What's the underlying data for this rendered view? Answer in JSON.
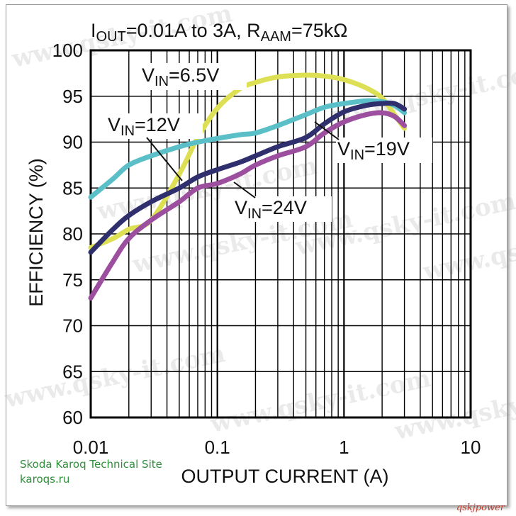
{
  "chart_data": {
    "type": "line",
    "title": "I_OUT=0.01A to 3A, R_AAM=75kΩ",
    "title_parts": {
      "main1": "I",
      "sub1": "OUT",
      "main2": "=0.01A to 3A, R",
      "sub2": "AAM",
      "main3": "=75kΩ"
    },
    "xlabel": "OUTPUT CURRENT (A)",
    "ylabel": "EFFICIENCY (%)",
    "x_scale": "log",
    "xlim": [
      0.01,
      10
    ],
    "ylim": [
      60,
      100
    ],
    "x_ticks": [
      "0.01",
      "0.1",
      "1",
      "10"
    ],
    "y_ticks": [
      "60",
      "65",
      "70",
      "75",
      "80",
      "85",
      "90",
      "95",
      "100"
    ],
    "grid": true,
    "series": [
      {
        "name": "V_IN=6.5V",
        "label_main": "V",
        "label_sub": "IN",
        "label_rest": "=6.5V",
        "color": "#dddf55",
        "x": [
          0.01,
          0.015,
          0.02,
          0.03,
          0.05,
          0.07,
          0.1,
          0.15,
          0.2,
          0.3,
          0.5,
          0.7,
          1.0,
          1.5,
          2.0,
          2.5,
          3.0
        ],
        "y": [
          78.5,
          79.5,
          80.5,
          81.5,
          86.5,
          90.5,
          93.7,
          95.8,
          96.5,
          97.1,
          97.3,
          97.2,
          96.8,
          95.9,
          94.8,
          93.0,
          91.5
        ]
      },
      {
        "name": "V_IN=12V",
        "label_main": "V",
        "label_sub": "IN",
        "label_rest": "=12V",
        "color": "#5bbfc8",
        "x": [
          0.01,
          0.015,
          0.02,
          0.03,
          0.05,
          0.07,
          0.1,
          0.15,
          0.2,
          0.3,
          0.5,
          0.7,
          1.0,
          1.5,
          2.0,
          2.5,
          3.0
        ],
        "y": [
          84.0,
          86.0,
          87.5,
          88.5,
          89.5,
          90.0,
          90.4,
          90.8,
          91.0,
          91.8,
          93.0,
          93.8,
          94.2,
          94.5,
          94.4,
          94.0,
          93.2
        ]
      },
      {
        "name": "V_IN=19V",
        "label_main": "V",
        "label_sub": "IN",
        "label_rest": "=19V",
        "color": "#2f2f6e",
        "x": [
          0.01,
          0.015,
          0.02,
          0.03,
          0.05,
          0.07,
          0.1,
          0.15,
          0.2,
          0.3,
          0.5,
          0.7,
          1.0,
          1.5,
          2.0,
          2.5,
          3.0
        ],
        "y": [
          78.0,
          80.5,
          82.0,
          83.5,
          85.0,
          86.2,
          87.0,
          87.8,
          88.5,
          89.5,
          90.5,
          92.0,
          93.3,
          94.0,
          94.2,
          94.2,
          93.6
        ]
      },
      {
        "name": "V_IN=24V",
        "label_main": "V",
        "label_sub": "IN",
        "label_rest": "=24V",
        "color": "#9b4f9e",
        "x": [
          0.01,
          0.015,
          0.02,
          0.03,
          0.05,
          0.07,
          0.1,
          0.15,
          0.2,
          0.3,
          0.5,
          0.7,
          1.0,
          1.5,
          2.0,
          2.5,
          3.0
        ],
        "y": [
          73.0,
          77.0,
          79.5,
          81.5,
          83.5,
          85.0,
          85.5,
          86.5,
          87.5,
          88.5,
          89.5,
          91.0,
          92.2,
          93.0,
          93.2,
          92.8,
          91.8
        ]
      }
    ]
  },
  "site_caption": {
    "line1": "Skoda Karoq Technical Site",
    "line2": "karoqs.ru"
  },
  "watermark_text": "www.qsky-it.com",
  "corner_mark": "qskjpower"
}
